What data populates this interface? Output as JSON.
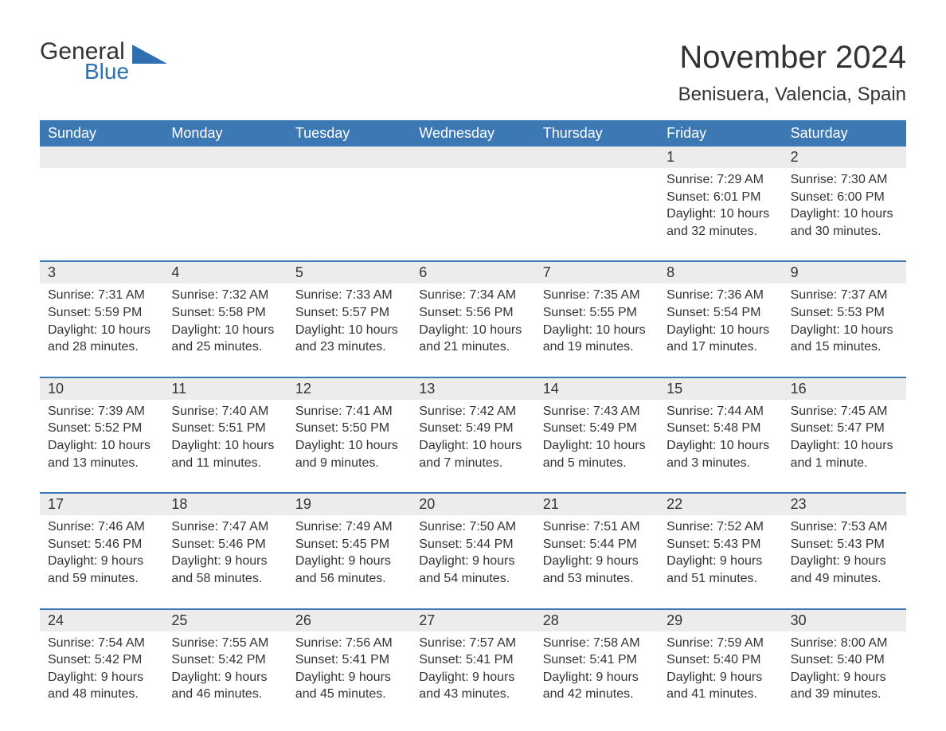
{
  "logo": {
    "general": "General",
    "blue": "Blue"
  },
  "title": "November 2024",
  "location": "Benisuera, Valencia, Spain",
  "colors": {
    "header_bg": "#3c78b4",
    "daynum_bg": "#ececec",
    "text": "#333333",
    "logo_blue": "#2f6fb0",
    "border": "#3c78b4",
    "background": "#ffffff"
  },
  "weekdays": [
    "Sunday",
    "Monday",
    "Tuesday",
    "Wednesday",
    "Thursday",
    "Friday",
    "Saturday"
  ],
  "weeks": [
    [
      null,
      null,
      null,
      null,
      null,
      {
        "n": "1",
        "sunrise": "Sunrise: 7:29 AM",
        "sunset": "Sunset: 6:01 PM",
        "daylight": "Daylight: 10 hours and 32 minutes."
      },
      {
        "n": "2",
        "sunrise": "Sunrise: 7:30 AM",
        "sunset": "Sunset: 6:00 PM",
        "daylight": "Daylight: 10 hours and 30 minutes."
      }
    ],
    [
      {
        "n": "3",
        "sunrise": "Sunrise: 7:31 AM",
        "sunset": "Sunset: 5:59 PM",
        "daylight": "Daylight: 10 hours and 28 minutes."
      },
      {
        "n": "4",
        "sunrise": "Sunrise: 7:32 AM",
        "sunset": "Sunset: 5:58 PM",
        "daylight": "Daylight: 10 hours and 25 minutes."
      },
      {
        "n": "5",
        "sunrise": "Sunrise: 7:33 AM",
        "sunset": "Sunset: 5:57 PM",
        "daylight": "Daylight: 10 hours and 23 minutes."
      },
      {
        "n": "6",
        "sunrise": "Sunrise: 7:34 AM",
        "sunset": "Sunset: 5:56 PM",
        "daylight": "Daylight: 10 hours and 21 minutes."
      },
      {
        "n": "7",
        "sunrise": "Sunrise: 7:35 AM",
        "sunset": "Sunset: 5:55 PM",
        "daylight": "Daylight: 10 hours and 19 minutes."
      },
      {
        "n": "8",
        "sunrise": "Sunrise: 7:36 AM",
        "sunset": "Sunset: 5:54 PM",
        "daylight": "Daylight: 10 hours and 17 minutes."
      },
      {
        "n": "9",
        "sunrise": "Sunrise: 7:37 AM",
        "sunset": "Sunset: 5:53 PM",
        "daylight": "Daylight: 10 hours and 15 minutes."
      }
    ],
    [
      {
        "n": "10",
        "sunrise": "Sunrise: 7:39 AM",
        "sunset": "Sunset: 5:52 PM",
        "daylight": "Daylight: 10 hours and 13 minutes."
      },
      {
        "n": "11",
        "sunrise": "Sunrise: 7:40 AM",
        "sunset": "Sunset: 5:51 PM",
        "daylight": "Daylight: 10 hours and 11 minutes."
      },
      {
        "n": "12",
        "sunrise": "Sunrise: 7:41 AM",
        "sunset": "Sunset: 5:50 PM",
        "daylight": "Daylight: 10 hours and 9 minutes."
      },
      {
        "n": "13",
        "sunrise": "Sunrise: 7:42 AM",
        "sunset": "Sunset: 5:49 PM",
        "daylight": "Daylight: 10 hours and 7 minutes."
      },
      {
        "n": "14",
        "sunrise": "Sunrise: 7:43 AM",
        "sunset": "Sunset: 5:49 PM",
        "daylight": "Daylight: 10 hours and 5 minutes."
      },
      {
        "n": "15",
        "sunrise": "Sunrise: 7:44 AM",
        "sunset": "Sunset: 5:48 PM",
        "daylight": "Daylight: 10 hours and 3 minutes."
      },
      {
        "n": "16",
        "sunrise": "Sunrise: 7:45 AM",
        "sunset": "Sunset: 5:47 PM",
        "daylight": "Daylight: 10 hours and 1 minute."
      }
    ],
    [
      {
        "n": "17",
        "sunrise": "Sunrise: 7:46 AM",
        "sunset": "Sunset: 5:46 PM",
        "daylight": "Daylight: 9 hours and 59 minutes."
      },
      {
        "n": "18",
        "sunrise": "Sunrise: 7:47 AM",
        "sunset": "Sunset: 5:46 PM",
        "daylight": "Daylight: 9 hours and 58 minutes."
      },
      {
        "n": "19",
        "sunrise": "Sunrise: 7:49 AM",
        "sunset": "Sunset: 5:45 PM",
        "daylight": "Daylight: 9 hours and 56 minutes."
      },
      {
        "n": "20",
        "sunrise": "Sunrise: 7:50 AM",
        "sunset": "Sunset: 5:44 PM",
        "daylight": "Daylight: 9 hours and 54 minutes."
      },
      {
        "n": "21",
        "sunrise": "Sunrise: 7:51 AM",
        "sunset": "Sunset: 5:44 PM",
        "daylight": "Daylight: 9 hours and 53 minutes."
      },
      {
        "n": "22",
        "sunrise": "Sunrise: 7:52 AM",
        "sunset": "Sunset: 5:43 PM",
        "daylight": "Daylight: 9 hours and 51 minutes."
      },
      {
        "n": "23",
        "sunrise": "Sunrise: 7:53 AM",
        "sunset": "Sunset: 5:43 PM",
        "daylight": "Daylight: 9 hours and 49 minutes."
      }
    ],
    [
      {
        "n": "24",
        "sunrise": "Sunrise: 7:54 AM",
        "sunset": "Sunset: 5:42 PM",
        "daylight": "Daylight: 9 hours and 48 minutes."
      },
      {
        "n": "25",
        "sunrise": "Sunrise: 7:55 AM",
        "sunset": "Sunset: 5:42 PM",
        "daylight": "Daylight: 9 hours and 46 minutes."
      },
      {
        "n": "26",
        "sunrise": "Sunrise: 7:56 AM",
        "sunset": "Sunset: 5:41 PM",
        "daylight": "Daylight: 9 hours and 45 minutes."
      },
      {
        "n": "27",
        "sunrise": "Sunrise: 7:57 AM",
        "sunset": "Sunset: 5:41 PM",
        "daylight": "Daylight: 9 hours and 43 minutes."
      },
      {
        "n": "28",
        "sunrise": "Sunrise: 7:58 AM",
        "sunset": "Sunset: 5:41 PM",
        "daylight": "Daylight: 9 hours and 42 minutes."
      },
      {
        "n": "29",
        "sunrise": "Sunrise: 7:59 AM",
        "sunset": "Sunset: 5:40 PM",
        "daylight": "Daylight: 9 hours and 41 minutes."
      },
      {
        "n": "30",
        "sunrise": "Sunrise: 8:00 AM",
        "sunset": "Sunset: 5:40 PM",
        "daylight": "Daylight: 9 hours and 39 minutes."
      }
    ]
  ]
}
